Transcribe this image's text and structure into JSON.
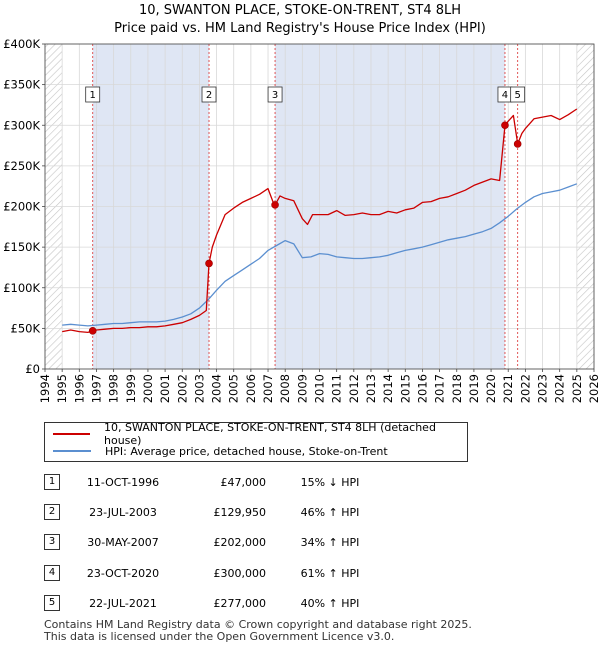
{
  "colors": {
    "property": "#cc0000",
    "hpi": "#5b8fd0",
    "shade": "#dfe6f4",
    "hatch": "#c0c0c0",
    "grid": "#ffffff",
    "vline": "#dd4444"
  },
  "chart_data": {
    "type": "line",
    "title": "10, SWANTON PLACE, STOKE-ON-TRENT, ST4 8LH",
    "subtitle": "Price paid vs. HM Land Registry's House Price Index (HPI)",
    "xlim": [
      1994,
      2026
    ],
    "ylim": [
      0,
      400000
    ],
    "y_ticks": [
      0,
      50000,
      100000,
      150000,
      200000,
      250000,
      300000,
      350000,
      400000
    ],
    "y_tick_labels": [
      "£0",
      "£50K",
      "£100K",
      "£150K",
      "£200K",
      "£250K",
      "£300K",
      "£350K",
      "£400K"
    ],
    "x_ticks": [
      1994,
      1995,
      1996,
      1997,
      1998,
      1999,
      2000,
      2001,
      2002,
      2003,
      2004,
      2005,
      2006,
      2007,
      2008,
      2009,
      2010,
      2011,
      2012,
      2013,
      2014,
      2015,
      2016,
      2017,
      2018,
      2019,
      2020,
      2021,
      2022,
      2023,
      2024,
      2025,
      2026
    ],
    "x_tick_labels": [
      "1994",
      "1995",
      "1996",
      "1997",
      "1998",
      "1999",
      "2000",
      "2001",
      "2002",
      "2003",
      "2004",
      "2005",
      "2006",
      "2007",
      "2008",
      "2009",
      "2010",
      "2011",
      "2012",
      "2013",
      "2014",
      "2015",
      "2016",
      "2017",
      "2018",
      "2019",
      "2020",
      "2021",
      "2022",
      "2023",
      "2024",
      "2025",
      "2026"
    ],
    "data_range": [
      1995.0,
      2025.0
    ],
    "series": [
      {
        "name": "10, SWANTON PLACE, STOKE-ON-TRENT, ST4 8LH (detached house)",
        "x": [
          1995.0,
          1995.5,
          1996.0,
          1996.5,
          1996.78,
          1997.0,
          1997.5,
          1998.0,
          1998.5,
          1999.0,
          1999.5,
          2000.0,
          2000.5,
          2001.0,
          2001.5,
          2002.0,
          2002.5,
          2003.0,
          2003.4,
          2003.56,
          2003.75,
          2004.0,
          2004.5,
          2005.0,
          2005.5,
          2006.0,
          2006.5,
          2007.0,
          2007.3,
          2007.41,
          2007.7,
          2008.0,
          2008.5,
          2009.0,
          2009.3,
          2009.6,
          2010.0,
          2010.5,
          2011.0,
          2011.5,
          2012.0,
          2012.5,
          2013.0,
          2013.5,
          2014.0,
          2014.5,
          2015.0,
          2015.5,
          2016.0,
          2016.5,
          2017.0,
          2017.5,
          2018.0,
          2018.5,
          2019.0,
          2019.5,
          2020.0,
          2020.5,
          2020.81,
          2021.0,
          2021.3,
          2021.55,
          2021.8,
          2022.0,
          2022.5,
          2023.0,
          2023.5,
          2024.0,
          2024.5,
          2025.0
        ],
        "values": [
          46000,
          48000,
          46000,
          45000,
          47000,
          48000,
          49000,
          50000,
          50000,
          51000,
          51000,
          52000,
          52000,
          53000,
          55000,
          57000,
          61000,
          66000,
          72000,
          129950,
          150000,
          165000,
          190000,
          198000,
          205000,
          210000,
          215000,
          222000,
          205000,
          202000,
          213000,
          210000,
          207000,
          185000,
          178000,
          190000,
          190000,
          190000,
          195000,
          189000,
          190000,
          192000,
          190000,
          190000,
          194000,
          192000,
          196000,
          198000,
          205000,
          206000,
          210000,
          212000,
          216000,
          220000,
          226000,
          230000,
          234000,
          232000,
          300000,
          305000,
          312000,
          277000,
          290000,
          296000,
          308000,
          310000,
          312000,
          307000,
          313000,
          320000
        ]
      },
      {
        "name": "HPI: Average price, detached house, Stoke-on-Trent",
        "x": [
          1995.0,
          1995.5,
          1996.0,
          1996.5,
          1997.0,
          1997.5,
          1998.0,
          1998.5,
          1999.0,
          1999.5,
          2000.0,
          2000.5,
          2001.0,
          2001.5,
          2002.0,
          2002.5,
          2003.0,
          2003.5,
          2004.0,
          2004.5,
          2005.0,
          2005.5,
          2006.0,
          2006.5,
          2007.0,
          2007.5,
          2008.0,
          2008.5,
          2009.0,
          2009.5,
          2010.0,
          2010.5,
          2011.0,
          2011.5,
          2012.0,
          2012.5,
          2013.0,
          2013.5,
          2014.0,
          2014.5,
          2015.0,
          2015.5,
          2016.0,
          2016.5,
          2017.0,
          2017.5,
          2018.0,
          2018.5,
          2019.0,
          2019.5,
          2020.0,
          2020.5,
          2021.0,
          2021.5,
          2022.0,
          2022.5,
          2023.0,
          2023.5,
          2024.0,
          2024.5,
          2025.0
        ],
        "values": [
          54000,
          55000,
          54000,
          53000,
          54000,
          55000,
          56000,
          56000,
          57000,
          58000,
          58000,
          58000,
          59000,
          61000,
          64000,
          68000,
          75000,
          85000,
          97000,
          108000,
          115000,
          122000,
          129000,
          136000,
          146000,
          152000,
          158000,
          154000,
          137000,
          138000,
          142000,
          141000,
          138000,
          137000,
          136000,
          136000,
          137000,
          138000,
          140000,
          143000,
          146000,
          148000,
          150000,
          153000,
          156000,
          159000,
          161000,
          163000,
          166000,
          169000,
          173000,
          180000,
          188000,
          197000,
          205000,
          212000,
          216000,
          218000,
          220000,
          224000,
          228000
        ]
      }
    ],
    "sales": [
      {
        "n": "1",
        "x": 1996.78,
        "value": 47000
      },
      {
        "n": "2",
        "x": 2003.56,
        "value": 129950
      },
      {
        "n": "3",
        "x": 2007.41,
        "value": 202000
      },
      {
        "n": "4",
        "x": 2020.81,
        "value": 300000
      },
      {
        "n": "5",
        "x": 2021.55,
        "value": 277000
      }
    ]
  },
  "legend": {
    "property_label": "10, SWANTON PLACE, STOKE-ON-TRENT, ST4 8LH (detached house)",
    "hpi_label": "HPI: Average price, detached house, Stoke-on-Trent"
  },
  "sales_table": [
    {
      "num": "1",
      "date": "11-OCT-1996",
      "price": "£47,000",
      "hpi": "15% ↓ HPI"
    },
    {
      "num": "2",
      "date": "23-JUL-2003",
      "price": "£129,950",
      "hpi": "46% ↑ HPI"
    },
    {
      "num": "3",
      "date": "30-MAY-2007",
      "price": "£202,000",
      "hpi": "34% ↑ HPI"
    },
    {
      "num": "4",
      "date": "23-OCT-2020",
      "price": "£300,000",
      "hpi": "61% ↑ HPI"
    },
    {
      "num": "5",
      "date": "22-JUL-2021",
      "price": "£277,000",
      "hpi": "40% ↑ HPI"
    }
  ],
  "footer": {
    "line1": "Contains HM Land Registry data © Crown copyright and database right 2025.",
    "line2": "This data is licensed under the Open Government Licence v3.0."
  }
}
